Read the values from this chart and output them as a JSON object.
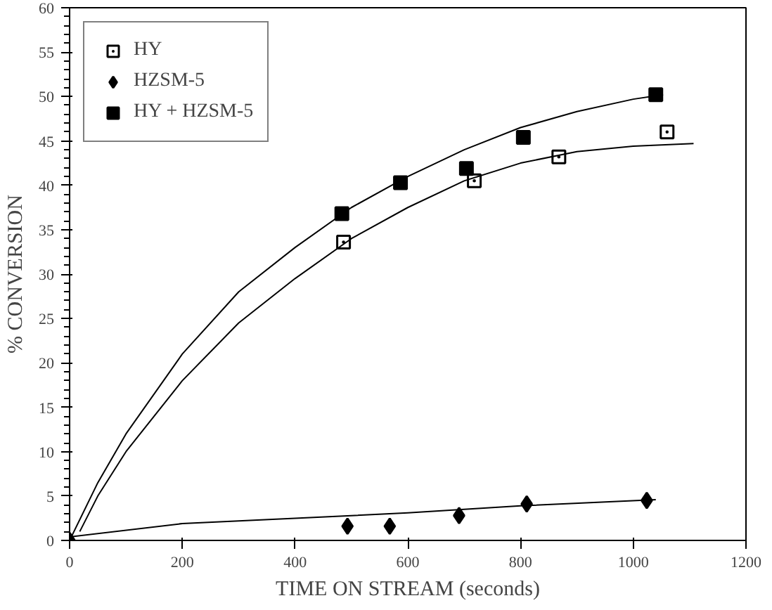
{
  "chart_data": {
    "type": "scatter",
    "xlabel": "TIME ON STREAM (seconds)",
    "ylabel": "% CONVERSION",
    "xlim": [
      0,
      1200
    ],
    "xticks": [
      0,
      200,
      400,
      600,
      800,
      1000,
      1200
    ],
    "ylim": [
      0,
      60
    ],
    "yticks": [
      0,
      5,
      10,
      15,
      20,
      25,
      30,
      35,
      40,
      45,
      50,
      55,
      60
    ],
    "grid": false,
    "legend": "top left",
    "series": [
      {
        "name": "HY",
        "color": "#ffffff",
        "marker": "square",
        "x": [
          486,
          718,
          868,
          1060
        ],
        "values": [
          33.6,
          40.5,
          43.2,
          46.0
        ]
      },
      {
        "name": "HZSM-5",
        "color": "#000000",
        "marker": "diamond",
        "x": [
          0,
          493,
          568,
          691,
          811,
          1024
        ],
        "values": [
          0,
          1.6,
          1.6,
          2.8,
          4.1,
          4.5
        ]
      },
      {
        "name": "HY + HZSM-5",
        "color": "#000000",
        "marker": "square",
        "x": [
          483,
          587,
          704,
          805,
          1040
        ],
        "values": [
          36.8,
          40.3,
          41.9,
          45.4,
          50.2
        ]
      },
      {
        "type": "line",
        "color": "#000000",
        "x": [
          0,
          50,
          100,
          200,
          300,
          400,
          500,
          600,
          700,
          800,
          900,
          1000,
          1053
        ],
        "values": [
          0,
          6.5,
          12,
          21,
          28,
          33,
          37.5,
          41,
          44,
          46.5,
          48.3,
          49.7,
          50.2
        ]
      },
      {
        "type": "line",
        "color": "#000000",
        "x": [
          18,
          50,
          100,
          200,
          300,
          400,
          500,
          600,
          700,
          800,
          900,
          1000,
          1107
        ],
        "values": [
          1,
          5,
          10,
          18,
          24.5,
          29.5,
          34,
          37.5,
          40.5,
          42.5,
          43.8,
          44.4,
          44.7
        ]
      },
      {
        "type": "line",
        "color": "#000000",
        "x": [
          0,
          200,
          400,
          600,
          800,
          1040
        ],
        "values": [
          0.4,
          1.9,
          2.5,
          3.1,
          3.9,
          4.6
        ]
      }
    ]
  }
}
